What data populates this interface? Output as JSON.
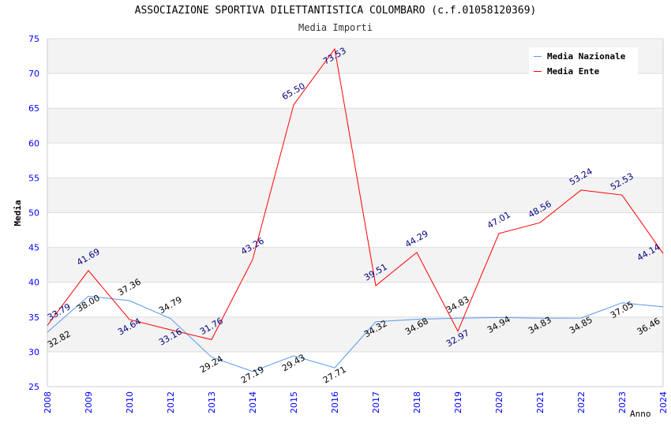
{
  "chart_data": {
    "type": "line",
    "title": "ASSOCIAZIONE SPORTIVA DILETTANTISTICA COLOMBARO (c.f.01058120369)",
    "subtitle": "Media Importi",
    "xlabel": "Anno",
    "ylabel": "Media",
    "ylim": [
      25,
      75
    ],
    "yticks": [
      25,
      30,
      35,
      40,
      45,
      50,
      55,
      60,
      65,
      70,
      75
    ],
    "categories": [
      "2008",
      "2009",
      "2010",
      "2012",
      "2013",
      "2014",
      "2015",
      "2016",
      "2017",
      "2018",
      "2019",
      "2020",
      "2021",
      "2022",
      "2023",
      "2024"
    ],
    "grid": true,
    "legend_position": "top-right",
    "series": [
      {
        "name": "Media Nazionale",
        "color": "#5599ee",
        "label_color": "#000000",
        "values": [
          32.82,
          38.0,
          37.36,
          34.79,
          29.24,
          27.19,
          29.43,
          27.71,
          34.32,
          34.68,
          34.83,
          34.94,
          34.83,
          34.85,
          37.05,
          36.46
        ]
      },
      {
        "name": "Media Ente",
        "color": "#ff0000",
        "label_color": "#000080",
        "values": [
          33.79,
          41.69,
          34.64,
          33.16,
          31.76,
          43.26,
          65.5,
          73.53,
          39.51,
          44.29,
          32.97,
          47.01,
          48.56,
          53.24,
          52.53,
          44.14
        ]
      }
    ]
  }
}
